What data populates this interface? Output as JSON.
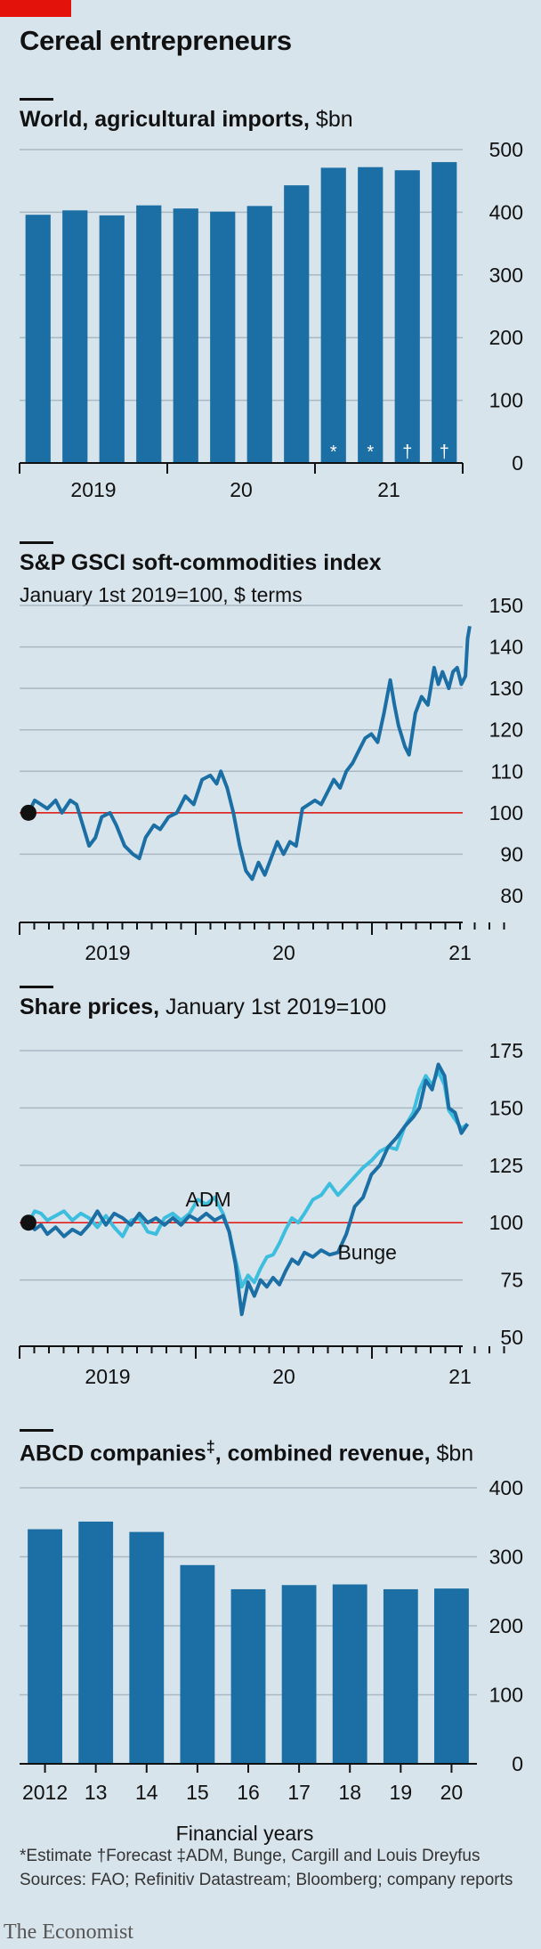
{
  "header": {
    "title": "Cereal entrepreneurs"
  },
  "panel1": {
    "title": "World, agricultural imports,",
    "unit": "$bn",
    "chart_data": {
      "type": "bar",
      "title": "World, agricultural imports, $bn",
      "x_tick_labels": [
        "2019",
        "20",
        "21"
      ],
      "y_ticks": [
        0,
        100,
        200,
        300,
        400,
        500
      ],
      "ylim": [
        0,
        500
      ],
      "values": [
        396,
        403,
        395,
        411,
        406,
        401,
        410,
        443,
        471,
        472,
        467,
        480
      ],
      "markers": [
        "",
        "",
        "",
        "",
        "",
        "",
        "",
        "",
        "*",
        "*",
        "†",
        "†"
      ]
    }
  },
  "panel2": {
    "title": "S&P GSCI soft-commodities index",
    "subtitle": "January 1st 2019=100, $ terms",
    "chart_data": {
      "type": "line",
      "title": "S&P GSCI soft-commodities index",
      "subtitle": "January 1st 2019=100, $ terms",
      "x_tick_labels": [
        "2019",
        "20",
        "21"
      ],
      "y_ticks": [
        80,
        90,
        100,
        110,
        120,
        130,
        140,
        150
      ],
      "ylim": [
        80,
        150
      ],
      "reference_line": 100,
      "series": [
        {
          "color": "#1b6fa4",
          "points": [
            [
              0.0,
              100
            ],
            [
              0.3,
              103
            ],
            [
              0.6,
              102
            ],
            [
              0.9,
              101
            ],
            [
              1.3,
              103
            ],
            [
              1.6,
              100
            ],
            [
              2.0,
              103
            ],
            [
              2.3,
              102
            ],
            [
              2.6,
              97
            ],
            [
              2.9,
              92
            ],
            [
              3.2,
              94
            ],
            [
              3.5,
              99
            ],
            [
              3.9,
              100
            ],
            [
              4.2,
              97
            ],
            [
              4.6,
              92
            ],
            [
              5.0,
              90
            ],
            [
              5.3,
              89
            ],
            [
              5.6,
              94
            ],
            [
              6.0,
              97
            ],
            [
              6.3,
              96
            ],
            [
              6.7,
              99
            ],
            [
              7.1,
              100
            ],
            [
              7.5,
              104
            ],
            [
              7.9,
              102
            ],
            [
              8.3,
              108
            ],
            [
              8.7,
              109
            ],
            [
              9.0,
              107
            ],
            [
              9.2,
              110
            ],
            [
              9.5,
              106
            ],
            [
              9.8,
              100
            ],
            [
              10.1,
              92
            ],
            [
              10.4,
              86
            ],
            [
              10.7,
              84
            ],
            [
              11.0,
              88
            ],
            [
              11.3,
              85
            ],
            [
              11.6,
              89
            ],
            [
              11.9,
              93
            ],
            [
              12.2,
              90
            ],
            [
              12.5,
              93
            ],
            [
              12.8,
              92
            ],
            [
              13.1,
              101
            ],
            [
              13.4,
              102
            ],
            [
              13.7,
              103
            ],
            [
              14.0,
              102
            ],
            [
              14.3,
              105
            ],
            [
              14.6,
              108
            ],
            [
              14.9,
              106
            ],
            [
              15.2,
              110
            ],
            [
              15.5,
              112
            ],
            [
              15.8,
              115
            ],
            [
              16.1,
              118
            ],
            [
              16.4,
              119
            ],
            [
              16.7,
              117
            ],
            [
              17.0,
              124
            ],
            [
              17.3,
              132
            ],
            [
              17.5,
              126
            ],
            [
              17.7,
              121
            ],
            [
              18.0,
              116
            ],
            [
              18.2,
              114
            ],
            [
              18.5,
              124
            ],
            [
              18.8,
              128
            ],
            [
              19.1,
              126
            ],
            [
              19.4,
              135
            ],
            [
              19.6,
              131
            ],
            [
              19.8,
              134
            ],
            [
              20.1,
              130
            ],
            [
              20.3,
              134
            ],
            [
              20.5,
              135
            ],
            [
              20.7,
              131
            ],
            [
              20.9,
              133
            ],
            [
              21.0,
              142
            ],
            [
              21.1,
              145
            ]
          ]
        }
      ]
    }
  },
  "panel3": {
    "title": "Share prices,",
    "subtitle": "January 1st 2019=100",
    "chart_data": {
      "type": "line",
      "title": "Share prices, January 1st 2019=100",
      "x_tick_labels": [
        "2019",
        "20",
        "21"
      ],
      "y_ticks": [
        50,
        75,
        100,
        125,
        150,
        175
      ],
      "ylim": [
        50,
        175
      ],
      "reference_line": 100,
      "series": [
        {
          "name": "ADM",
          "color": "#3ebede",
          "points": [
            [
              0.0,
              100
            ],
            [
              0.3,
              105
            ],
            [
              0.6,
              104
            ],
            [
              0.9,
              101
            ],
            [
              1.3,
              103
            ],
            [
              1.7,
              105
            ],
            [
              2.1,
              101
            ],
            [
              2.5,
              104
            ],
            [
              2.9,
              102
            ],
            [
              3.3,
              98
            ],
            [
              3.7,
              103
            ],
            [
              4.1,
              98
            ],
            [
              4.5,
              94
            ],
            [
              4.9,
              101
            ],
            [
              5.3,
              102
            ],
            [
              5.7,
              96
            ],
            [
              6.1,
              95
            ],
            [
              6.5,
              102
            ],
            [
              6.9,
              104
            ],
            [
              7.3,
              101
            ],
            [
              7.7,
              104
            ],
            [
              8.1,
              110
            ],
            [
              8.5,
              108
            ],
            [
              8.9,
              111
            ],
            [
              9.3,
              104
            ],
            [
              9.6,
              96
            ],
            [
              9.9,
              84
            ],
            [
              10.2,
              72
            ],
            [
              10.5,
              77
            ],
            [
              10.8,
              74
            ],
            [
              11.1,
              80
            ],
            [
              11.4,
              85
            ],
            [
              11.7,
              86
            ],
            [
              12.0,
              91
            ],
            [
              12.3,
              97
            ],
            [
              12.6,
              102
            ],
            [
              12.9,
              100
            ],
            [
              13.2,
              104
            ],
            [
              13.6,
              110
            ],
            [
              14.0,
              112
            ],
            [
              14.4,
              117
            ],
            [
              14.8,
              112
            ],
            [
              15.2,
              116
            ],
            [
              15.6,
              120
            ],
            [
              16.0,
              124
            ],
            [
              16.4,
              127
            ],
            [
              16.8,
              131
            ],
            [
              17.2,
              133
            ],
            [
              17.6,
              132
            ],
            [
              18.0,
              142
            ],
            [
              18.4,
              148
            ],
            [
              18.7,
              158
            ],
            [
              19.0,
              164
            ],
            [
              19.3,
              160
            ],
            [
              19.6,
              166
            ],
            [
              19.9,
              160
            ],
            [
              20.1,
              149
            ],
            [
              20.4,
              145
            ],
            [
              20.7,
              141
            ],
            [
              21.0,
              143
            ]
          ]
        },
        {
          "name": "Bunge",
          "color": "#1b6fa4",
          "points": [
            [
              0.0,
              100
            ],
            [
              0.3,
              97
            ],
            [
              0.6,
              99
            ],
            [
              0.9,
              95
            ],
            [
              1.3,
              98
            ],
            [
              1.7,
              94
            ],
            [
              2.1,
              97
            ],
            [
              2.5,
              95
            ],
            [
              2.9,
              99
            ],
            [
              3.3,
              105
            ],
            [
              3.7,
              99
            ],
            [
              4.1,
              104
            ],
            [
              4.5,
              102
            ],
            [
              4.9,
              99
            ],
            [
              5.3,
              104
            ],
            [
              5.7,
              100
            ],
            [
              6.1,
              102
            ],
            [
              6.5,
              99
            ],
            [
              6.9,
              102
            ],
            [
              7.3,
              99
            ],
            [
              7.7,
              103
            ],
            [
              8.1,
              101
            ],
            [
              8.5,
              104
            ],
            [
              8.9,
              101
            ],
            [
              9.3,
              103
            ],
            [
              9.6,
              96
            ],
            [
              9.9,
              82
            ],
            [
              10.2,
              60
            ],
            [
              10.5,
              74
            ],
            [
              10.8,
              68
            ],
            [
              11.1,
              75
            ],
            [
              11.4,
              72
            ],
            [
              11.7,
              76
            ],
            [
              12.0,
              73
            ],
            [
              12.3,
              79
            ],
            [
              12.6,
              84
            ],
            [
              12.9,
              82
            ],
            [
              13.2,
              87
            ],
            [
              13.6,
              85
            ],
            [
              14.0,
              88
            ],
            [
              14.4,
              86
            ],
            [
              14.8,
              87
            ],
            [
              15.2,
              95
            ],
            [
              15.6,
              107
            ],
            [
              16.0,
              111
            ],
            [
              16.4,
              121
            ],
            [
              16.8,
              125
            ],
            [
              17.2,
              133
            ],
            [
              17.6,
              137
            ],
            [
              18.0,
              142
            ],
            [
              18.4,
              146
            ],
            [
              18.7,
              150
            ],
            [
              19.0,
              162
            ],
            [
              19.3,
              158
            ],
            [
              19.6,
              169
            ],
            [
              19.9,
              164
            ],
            [
              20.1,
              150
            ],
            [
              20.4,
              148
            ],
            [
              20.7,
              139
            ],
            [
              21.0,
              143
            ]
          ]
        }
      ],
      "annotations": [
        "ADM",
        "Bunge"
      ]
    }
  },
  "panel4": {
    "title": "ABCD companies",
    "title_mark": "‡",
    "title_rest": ", combined revenue,",
    "unit": "$bn",
    "xlabel": "Financial years",
    "chart_data": {
      "type": "bar",
      "title": "ABCD companies‡, combined revenue, $bn",
      "xlabel": "Financial years",
      "categories": [
        "2012",
        "13",
        "14",
        "15",
        "16",
        "17",
        "18",
        "19",
        "20"
      ],
      "values": [
        340,
        351,
        336,
        288,
        253,
        259,
        260,
        253,
        254
      ],
      "y_ticks": [
        0,
        100,
        200,
        300,
        400
      ],
      "ylim": [
        0,
        400
      ]
    }
  },
  "footer": {
    "notes": "*Estimate   †Forecast   ‡ADM, Bunge, Cargill and Louis Dreyfus",
    "sources": "Sources: FAO; Refinitiv Datastream; Bloomberg; company reports",
    "brand": "The Economist"
  },
  "colors": {
    "background": "#d8e4ec",
    "bar": "#1b6fa4",
    "line_dark": "#1b6fa4",
    "line_light": "#3ebede",
    "reference": "#e3120b",
    "grid": "#a9b8c3",
    "brand_red": "#e3120b"
  }
}
